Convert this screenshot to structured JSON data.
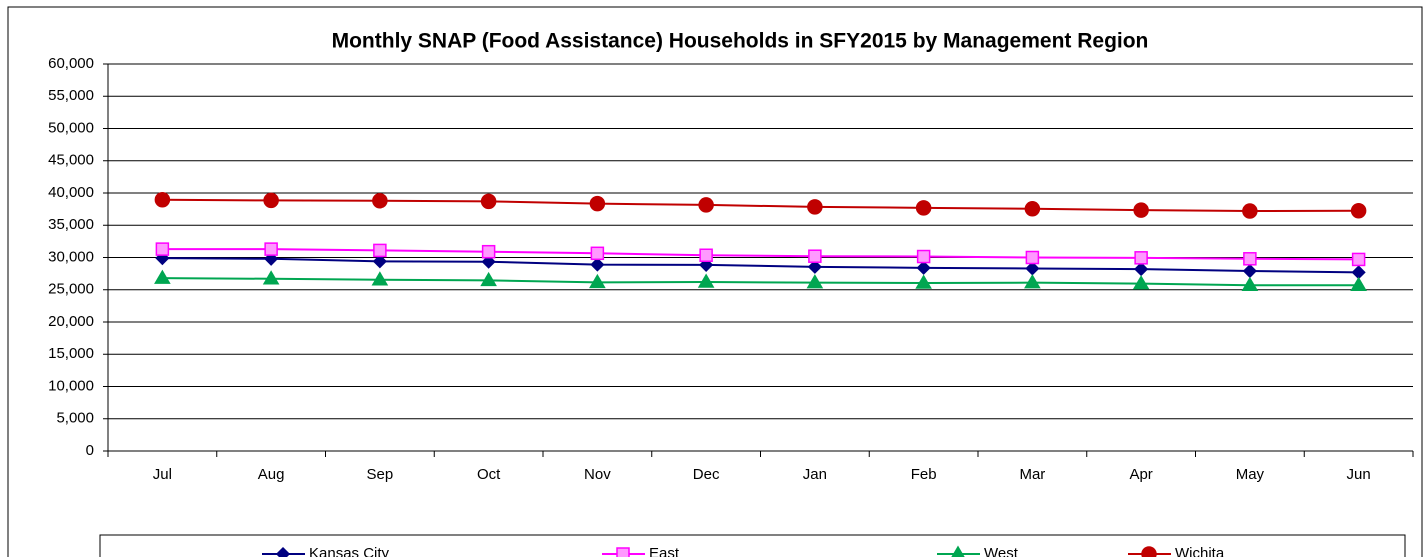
{
  "chart_data": {
    "type": "line",
    "title": "Monthly SNAP (Food Assistance) Households in SFY2015 by Management Region",
    "categories": [
      "Jul",
      "Aug",
      "Sep",
      "Oct",
      "Nov",
      "Dec",
      "Jan",
      "Feb",
      "Mar",
      "Apr",
      "May",
      "Jun"
    ],
    "series": [
      {
        "name": "Kansas City",
        "color": "#000080",
        "marker": "diamond",
        "values": [
          29900,
          29800,
          29400,
          29350,
          28900,
          28850,
          28550,
          28400,
          28300,
          28200,
          27900,
          27700
        ]
      },
      {
        "name": "East",
        "color": "#ff00ff",
        "marker": "square",
        "values": [
          31300,
          31300,
          31100,
          30900,
          30650,
          30350,
          30200,
          30150,
          30000,
          29950,
          29800,
          29700
        ]
      },
      {
        "name": "West",
        "color": "#00a651",
        "marker": "triangle",
        "values": [
          26800,
          26700,
          26550,
          26450,
          26150,
          26200,
          26100,
          26050,
          26100,
          25950,
          25700,
          25700
        ]
      },
      {
        "name": "Wichita",
        "color": "#c00000",
        "marker": "circle",
        "values": [
          38950,
          38850,
          38800,
          38700,
          38350,
          38150,
          37850,
          37700,
          37550,
          37350,
          37200,
          37250
        ]
      }
    ],
    "ylim": [
      0,
      60000
    ],
    "yticks": [
      0,
      {
        "value": 5000,
        "label": "5,000"
      },
      {
        "value": 10000,
        "label": "10,000"
      },
      {
        "value": 15000,
        "label": "15,000"
      },
      {
        "value": 20000,
        "label": "20,000"
      },
      {
        "value": 25000,
        "label": "25,000"
      },
      {
        "value": 30000,
        "label": "30,000"
      },
      {
        "value": 35000,
        "label": "35,000"
      },
      {
        "value": 40000,
        "label": "40,000"
      },
      {
        "value": 45000,
        "label": "45,000"
      },
      {
        "value": 50000,
        "label": "50,000"
      },
      {
        "value": 55000,
        "label": "55,000"
      },
      {
        "value": 60000,
        "label": "60,000"
      }
    ],
    "grid": true,
    "legend": "bottom"
  }
}
